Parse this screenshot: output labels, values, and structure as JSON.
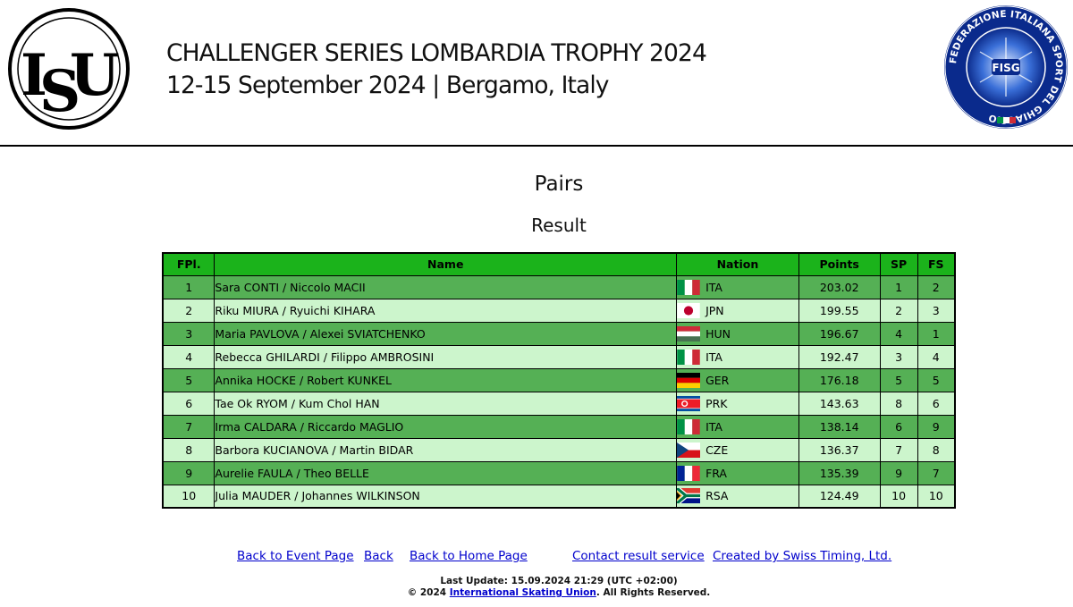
{
  "header": {
    "logo_left_text": "ISU",
    "logo_right_text": "FISG",
    "logo_right_ring": "FEDERAZIONE ITALIANA SPORT DEL GHIACCIO",
    "title": "CHALLENGER SERIES LOMBARDIA TROPHY 2024",
    "subtitle": "12-15 September 2024 | Bergamo, Italy"
  },
  "category": "Pairs",
  "segment": "Result",
  "table": {
    "columns": [
      "FPl.",
      "Name",
      "Nation",
      "Points",
      "SP",
      "FS"
    ],
    "rows": [
      {
        "fpl": "1",
        "name": "Sara CONTI / Niccolo MACII",
        "flag": "ita-flag-icon",
        "nation": "ITA",
        "points": "203.02",
        "sp": "1",
        "fs": "2"
      },
      {
        "fpl": "2",
        "name": "Riku MIURA / Ryuichi KIHARA",
        "flag": "jpn-flag-icon",
        "nation": "JPN",
        "points": "199.55",
        "sp": "2",
        "fs": "3"
      },
      {
        "fpl": "3",
        "name": "Maria PAVLOVA / Alexei SVIATCHENKO",
        "flag": "hun-flag-icon",
        "nation": "HUN",
        "points": "196.67",
        "sp": "4",
        "fs": "1"
      },
      {
        "fpl": "4",
        "name": "Rebecca GHILARDI / Filippo AMBROSINI",
        "flag": "ita-flag-icon",
        "nation": "ITA",
        "points": "192.47",
        "sp": "3",
        "fs": "4"
      },
      {
        "fpl": "5",
        "name": "Annika HOCKE / Robert KUNKEL",
        "flag": "ger-flag-icon",
        "nation": "GER",
        "points": "176.18",
        "sp": "5",
        "fs": "5"
      },
      {
        "fpl": "6",
        "name": "Tae Ok RYOM / Kum Chol HAN",
        "flag": "prk-flag-icon",
        "nation": "PRK",
        "points": "143.63",
        "sp": "8",
        "fs": "6"
      },
      {
        "fpl": "7",
        "name": "Irma CALDARA / Riccardo MAGLIO",
        "flag": "ita-flag-icon",
        "nation": "ITA",
        "points": "138.14",
        "sp": "6",
        "fs": "9"
      },
      {
        "fpl": "8",
        "name": "Barbora KUCIANOVA / Martin BIDAR",
        "flag": "cze-flag-icon",
        "nation": "CZE",
        "points": "136.37",
        "sp": "7",
        "fs": "8"
      },
      {
        "fpl": "9",
        "name": "Aurelie FAULA / Theo BELLE",
        "flag": "fra-flag-icon",
        "nation": "FRA",
        "points": "135.39",
        "sp": "9",
        "fs": "7"
      },
      {
        "fpl": "10",
        "name": "Julia MAUDER / Johannes WILKINSON",
        "flag": "rsa-flag-icon",
        "nation": "RSA",
        "points": "124.49",
        "sp": "10",
        "fs": "10"
      }
    ]
  },
  "links": {
    "event_page": "Back to Event Page",
    "back": "Back",
    "home_page": "Back to Home Page",
    "contact": "Contact result service",
    "created_by": "Created by Swiss Timing, Ltd."
  },
  "footer": {
    "last_update": "Last Update: 15.09.2024 21:29 (UTC +02:00)",
    "copyright_prefix": "© 2024",
    "copyright_link": "International Skating Union",
    "copyright_suffix": ". All Rights Reserved."
  },
  "colors": {
    "header_row": "#1bb31b",
    "row_dark": "#55b055",
    "row_light": "#ccf5cc",
    "link": "#0000cc"
  }
}
